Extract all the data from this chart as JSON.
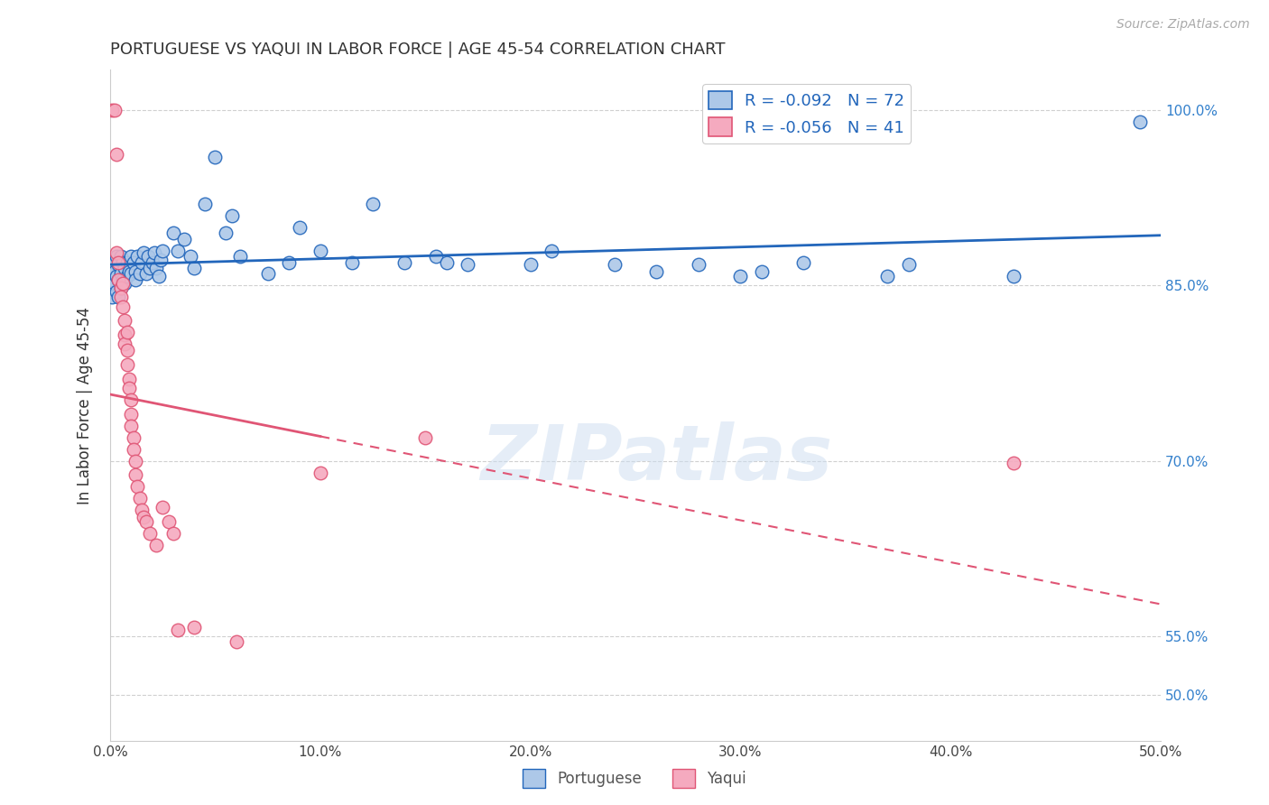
{
  "title": "PORTUGUESE VS YAQUI IN LABOR FORCE | AGE 45-54 CORRELATION CHART",
  "source": "Source: ZipAtlas.com",
  "ylabel": "In Labor Force | Age 45-54",
  "xlim": [
    0.0,
    0.5
  ],
  "ylim": [
    0.46,
    1.035
  ],
  "ytick_labels": [
    "50.0%",
    "55.0%",
    "70.0%",
    "85.0%",
    "100.0%"
  ],
  "ytick_vals": [
    0.5,
    0.55,
    0.7,
    0.85,
    1.0
  ],
  "xtick_labels": [
    "0.0%",
    "10.0%",
    "20.0%",
    "30.0%",
    "40.0%",
    "50.0%"
  ],
  "xtick_vals": [
    0.0,
    0.1,
    0.2,
    0.3,
    0.4,
    0.5
  ],
  "portuguese_R": -0.092,
  "portuguese_N": 72,
  "yaqui_R": -0.056,
  "yaqui_N": 41,
  "portuguese_color": "#adc8e8",
  "yaqui_color": "#f5aabf",
  "portuguese_line_color": "#2266bb",
  "yaqui_line_color": "#e05575",
  "portuguese_scatter": [
    [
      0.001,
      0.863
    ],
    [
      0.001,
      0.855
    ],
    [
      0.001,
      0.84
    ],
    [
      0.002,
      0.87
    ],
    [
      0.002,
      0.862
    ],
    [
      0.002,
      0.852
    ],
    [
      0.003,
      0.875
    ],
    [
      0.003,
      0.858
    ],
    [
      0.003,
      0.845
    ],
    [
      0.004,
      0.868
    ],
    [
      0.004,
      0.855
    ],
    [
      0.004,
      0.84
    ],
    [
      0.005,
      0.875
    ],
    [
      0.005,
      0.86
    ],
    [
      0.005,
      0.848
    ],
    [
      0.006,
      0.87
    ],
    [
      0.006,
      0.855
    ],
    [
      0.007,
      0.865
    ],
    [
      0.007,
      0.852
    ],
    [
      0.008,
      0.87
    ],
    [
      0.008,
      0.858
    ],
    [
      0.009,
      0.862
    ],
    [
      0.01,
      0.875
    ],
    [
      0.01,
      0.86
    ],
    [
      0.011,
      0.87
    ],
    [
      0.012,
      0.862
    ],
    [
      0.012,
      0.855
    ],
    [
      0.013,
      0.875
    ],
    [
      0.014,
      0.86
    ],
    [
      0.015,
      0.87
    ],
    [
      0.016,
      0.878
    ],
    [
      0.017,
      0.86
    ],
    [
      0.018,
      0.875
    ],
    [
      0.019,
      0.865
    ],
    [
      0.02,
      0.87
    ],
    [
      0.021,
      0.878
    ],
    [
      0.022,
      0.865
    ],
    [
      0.023,
      0.858
    ],
    [
      0.024,
      0.872
    ],
    [
      0.025,
      0.88
    ],
    [
      0.03,
      0.895
    ],
    [
      0.032,
      0.88
    ],
    [
      0.035,
      0.89
    ],
    [
      0.038,
      0.875
    ],
    [
      0.04,
      0.865
    ],
    [
      0.045,
      0.92
    ],
    [
      0.05,
      0.96
    ],
    [
      0.055,
      0.895
    ],
    [
      0.058,
      0.91
    ],
    [
      0.062,
      0.875
    ],
    [
      0.075,
      0.86
    ],
    [
      0.085,
      0.87
    ],
    [
      0.09,
      0.9
    ],
    [
      0.1,
      0.88
    ],
    [
      0.115,
      0.87
    ],
    [
      0.125,
      0.92
    ],
    [
      0.14,
      0.87
    ],
    [
      0.155,
      0.875
    ],
    [
      0.16,
      0.87
    ],
    [
      0.17,
      0.868
    ],
    [
      0.2,
      0.868
    ],
    [
      0.21,
      0.88
    ],
    [
      0.24,
      0.868
    ],
    [
      0.26,
      0.862
    ],
    [
      0.28,
      0.868
    ],
    [
      0.3,
      0.858
    ],
    [
      0.31,
      0.862
    ],
    [
      0.33,
      0.87
    ],
    [
      0.37,
      0.858
    ],
    [
      0.38,
      0.868
    ],
    [
      0.43,
      0.858
    ],
    [
      0.49,
      0.99
    ]
  ],
  "yaqui_scatter": [
    [
      0.001,
      1.0
    ],
    [
      0.002,
      1.0
    ],
    [
      0.003,
      0.962
    ],
    [
      0.003,
      0.878
    ],
    [
      0.004,
      0.87
    ],
    [
      0.004,
      0.855
    ],
    [
      0.005,
      0.848
    ],
    [
      0.005,
      0.84
    ],
    [
      0.006,
      0.852
    ],
    [
      0.006,
      0.832
    ],
    [
      0.007,
      0.82
    ],
    [
      0.007,
      0.808
    ],
    [
      0.007,
      0.8
    ],
    [
      0.008,
      0.81
    ],
    [
      0.008,
      0.795
    ],
    [
      0.008,
      0.782
    ],
    [
      0.009,
      0.77
    ],
    [
      0.009,
      0.762
    ],
    [
      0.01,
      0.752
    ],
    [
      0.01,
      0.74
    ],
    [
      0.01,
      0.73
    ],
    [
      0.011,
      0.72
    ],
    [
      0.011,
      0.71
    ],
    [
      0.012,
      0.7
    ],
    [
      0.012,
      0.688
    ],
    [
      0.013,
      0.678
    ],
    [
      0.014,
      0.668
    ],
    [
      0.015,
      0.658
    ],
    [
      0.016,
      0.652
    ],
    [
      0.017,
      0.648
    ],
    [
      0.019,
      0.638
    ],
    [
      0.022,
      0.628
    ],
    [
      0.025,
      0.66
    ],
    [
      0.028,
      0.648
    ],
    [
      0.03,
      0.638
    ],
    [
      0.032,
      0.555
    ],
    [
      0.04,
      0.558
    ],
    [
      0.06,
      0.545
    ],
    [
      0.1,
      0.69
    ],
    [
      0.15,
      0.72
    ],
    [
      0.43,
      0.698
    ]
  ],
  "yaqui_solid_xlim": [
    0.0,
    0.1
  ],
  "yaqui_dashed_xlim": [
    0.1,
    0.5
  ],
  "watermark": "ZIPatlas",
  "background_color": "#ffffff",
  "legend_portuguese_label": "Portuguese",
  "legend_yaqui_label": "Yaqui"
}
